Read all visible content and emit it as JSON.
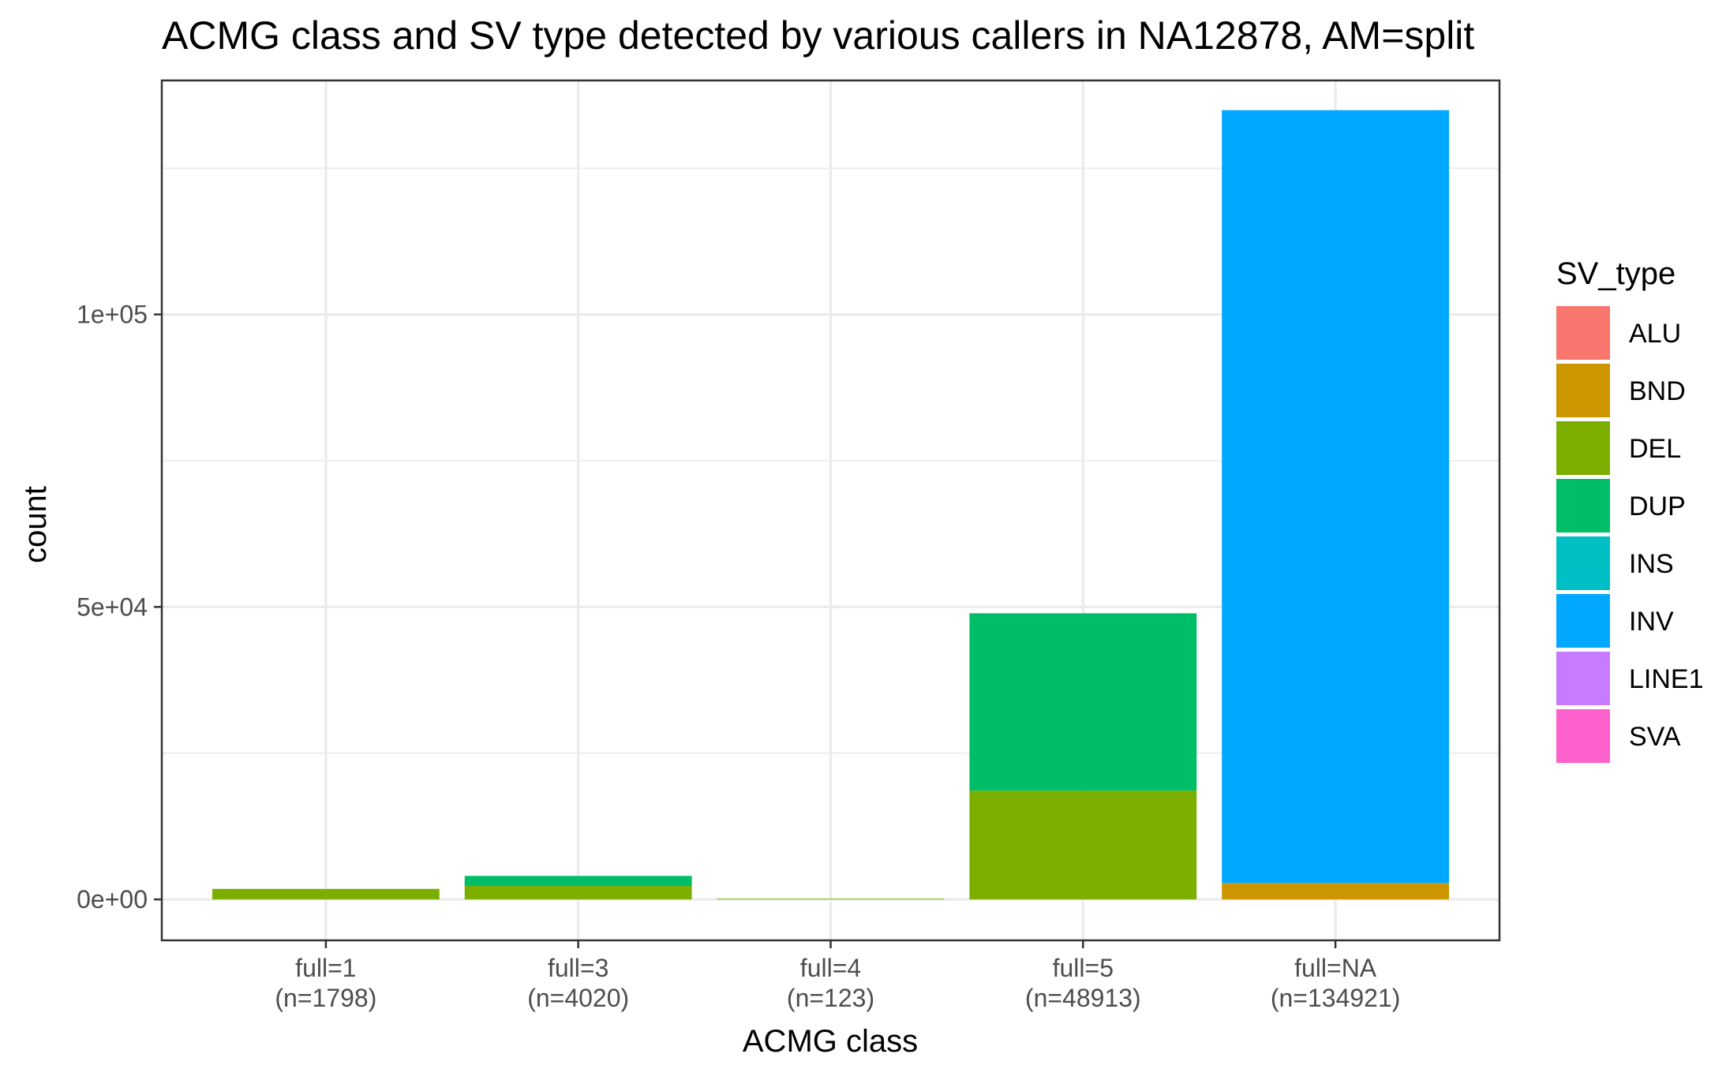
{
  "chart_data": {
    "type": "bar",
    "stacked": true,
    "title": "ACMG class and SV type detected by various callers in NA12878, AM=split",
    "xlabel": "ACMG class",
    "ylabel": "count",
    "categories": [
      "full=1",
      "full=3",
      "full=4",
      "full=5",
      "full=NA"
    ],
    "category_counts": [
      "(n=1798)",
      "(n=4020)",
      "(n=123)",
      "(n=48913)",
      "(n=134921)"
    ],
    "ylim": [
      -7000,
      140000
    ],
    "yticks": [
      {
        "value": 0,
        "label": "0e+00"
      },
      {
        "value": 50000,
        "label": "5e+04"
      },
      {
        "value": 100000,
        "label": "1e+05"
      }
    ],
    "y_minor_gridlines": [
      25000,
      75000,
      125000
    ],
    "grid": true,
    "legend": {
      "title": "SV_type",
      "position": "right",
      "entries": [
        "ALU",
        "BND",
        "DEL",
        "DUP",
        "INS",
        "INV",
        "LINE1",
        "SVA"
      ]
    },
    "colors": {
      "ALU": "#F8766D",
      "BND": "#CD9600",
      "DEL": "#7CAE00",
      "DUP": "#00BE67",
      "INS": "#00BFC4",
      "INV": "#00A9FF",
      "LINE1": "#C77CFF",
      "SVA": "#FF61CC"
    },
    "series": [
      {
        "name": "ALU",
        "values": [
          0,
          0,
          0,
          0,
          0
        ]
      },
      {
        "name": "BND",
        "values": [
          0,
          0,
          0,
          0,
          2800
        ]
      },
      {
        "name": "DEL",
        "values": [
          1798,
          2300,
          123,
          18600,
          0
        ]
      },
      {
        "name": "DUP",
        "values": [
          0,
          1720,
          0,
          30313,
          0
        ]
      },
      {
        "name": "INS",
        "values": [
          0,
          0,
          0,
          0,
          0
        ]
      },
      {
        "name": "INV",
        "values": [
          0,
          0,
          0,
          0,
          132121
        ]
      },
      {
        "name": "LINE1",
        "values": [
          0,
          0,
          0,
          0,
          0
        ]
      },
      {
        "name": "SVA",
        "values": [
          0,
          0,
          0,
          0,
          0
        ]
      }
    ]
  }
}
